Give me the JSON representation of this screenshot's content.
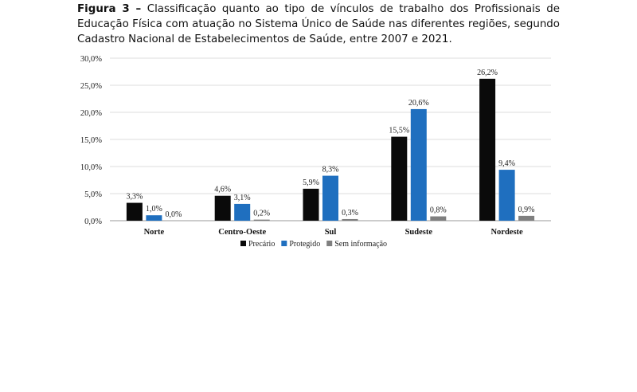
{
  "caption": {
    "label": "Figura 3 –",
    "text": "Classificação quanto ao tipo de vínculos de trabalho dos Profissionais de Educação Física com atuação no Sistema Único de Saúde nas diferentes regiões, segundo Cadastro Nacional de Estabelecimentos de Saúde, entre 2007 e 2021."
  },
  "chart_data": {
    "type": "bar",
    "title": "",
    "xlabel": "",
    "ylabel": "",
    "categories": [
      "Norte",
      "Centro-Oeste",
      "Sul",
      "Sudeste",
      "Nordeste"
    ],
    "series": [
      {
        "name": "Precário",
        "color": "#0a0a0a",
        "values": [
          3.3,
          4.6,
          5.9,
          15.5,
          26.2
        ],
        "labels": [
          "3,3%",
          "4,6%",
          "5,9%",
          "15,5%",
          "26,2%"
        ]
      },
      {
        "name": "Protegido",
        "color": "#1f6fbf",
        "values": [
          1.0,
          3.1,
          8.3,
          20.6,
          9.4
        ],
        "labels": [
          "1,0%",
          "3,1%",
          "8,3%",
          "20,6%",
          "9,4%"
        ]
      },
      {
        "name": "Sem informação",
        "color": "#7f7f7f",
        "values": [
          0.0,
          0.2,
          0.3,
          0.8,
          0.9
        ],
        "labels": [
          "0,0%",
          "0,2%",
          "0,3%",
          "0,8%",
          "0,9%"
        ]
      }
    ],
    "ylim": [
      0,
      30
    ],
    "yticks": [
      0,
      5,
      10,
      15,
      20,
      25,
      30
    ],
    "ytick_labels": [
      "0,0%",
      "5,0%",
      "10,0%",
      "15,0%",
      "20,0%",
      "25,0%",
      "30,0%"
    ],
    "grid": true,
    "legend": "bottom-center"
  }
}
